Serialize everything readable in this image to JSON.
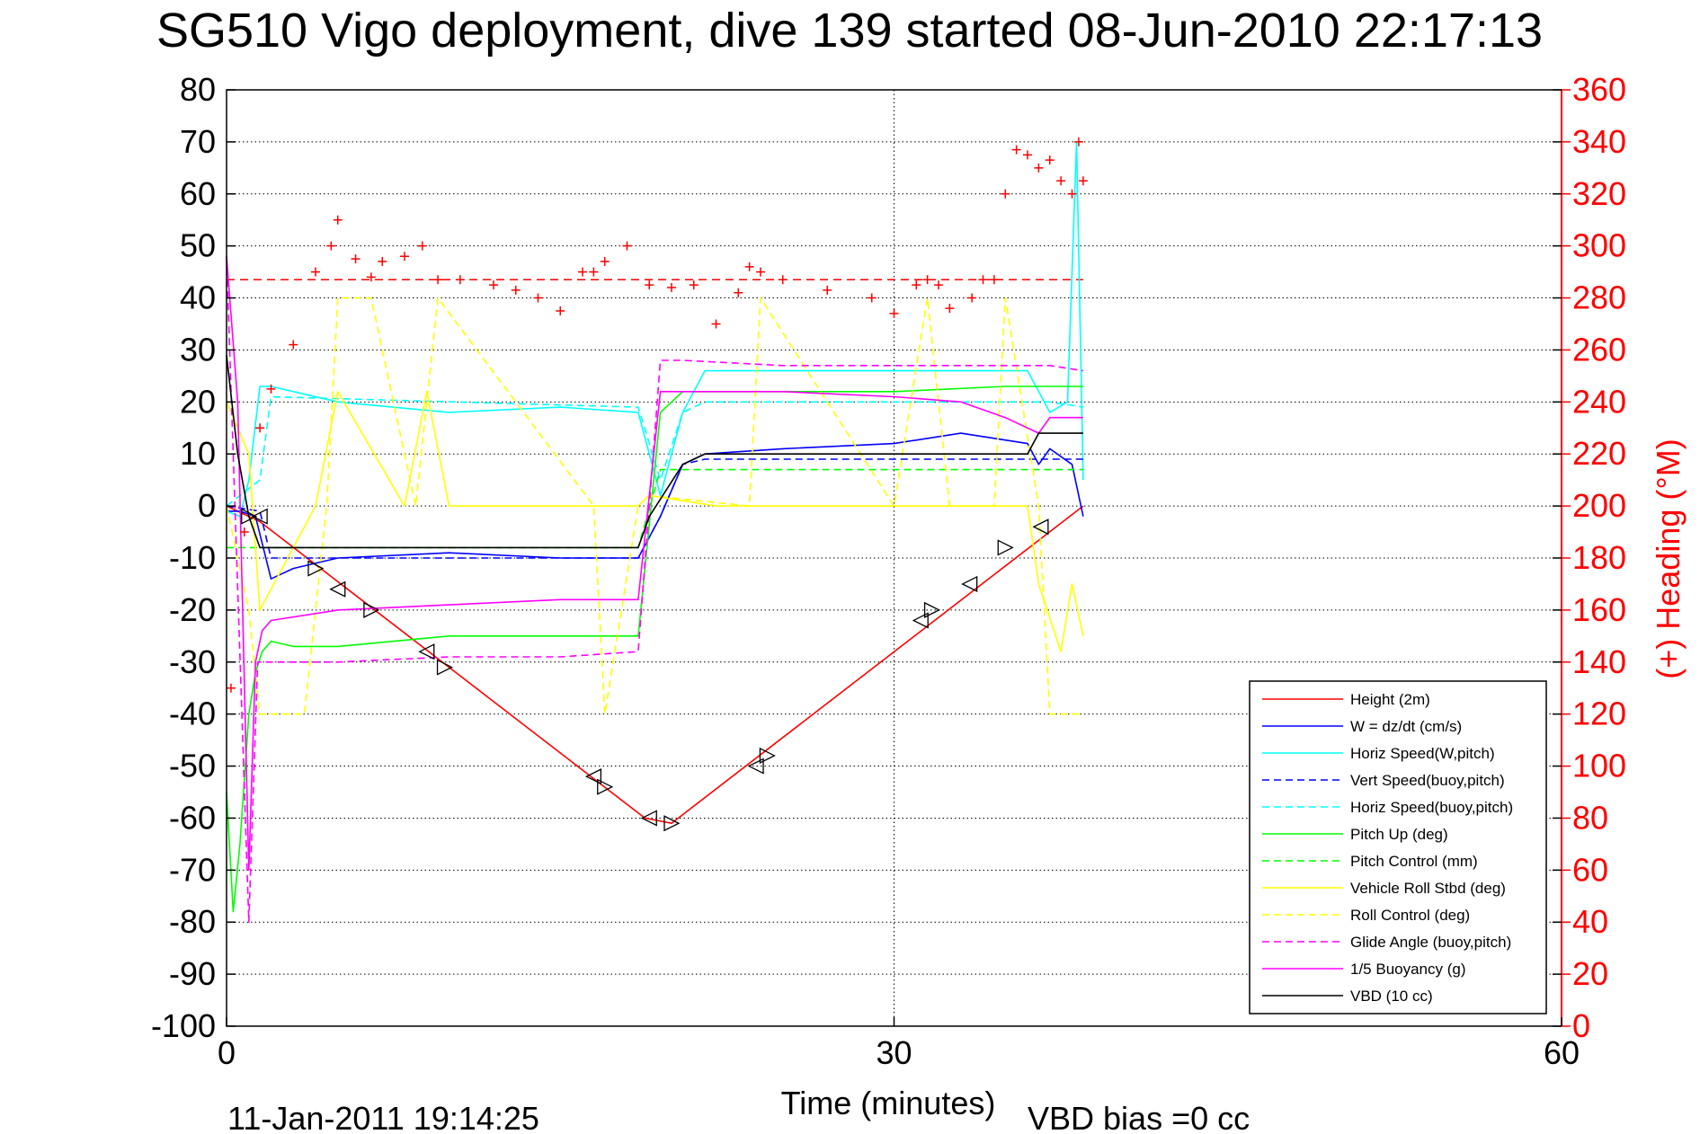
{
  "chart_data": {
    "type": "line",
    "title": "SG510 Vigo deployment, dive 139 started 08-Jun-2010 22:17:13",
    "xlabel": "Time (minutes)",
    "ylabel": "",
    "y2label": "(+) Heading (°M)",
    "xlim": [
      0,
      60
    ],
    "ylim": [
      -100,
      80
    ],
    "y2lim": [
      0,
      360
    ],
    "xticks": [
      0,
      30,
      60
    ],
    "yticks": [
      80,
      70,
      60,
      50,
      40,
      30,
      20,
      10,
      0,
      -10,
      -20,
      -30,
      -40,
      -50,
      -60,
      -70,
      -80,
      -90,
      -100
    ],
    "y2ticks": [
      360,
      340,
      320,
      300,
      280,
      260,
      240,
      220,
      200,
      180,
      160,
      140,
      120,
      100,
      80,
      60,
      40,
      20,
      0
    ],
    "grid": true,
    "legend_position": "bottom-right",
    "footer_left": "11-Jan-2011 19:14:25",
    "footer_right": "VBD bias =0 cc",
    "colors": {
      "red": "#ff0000",
      "blue": "#0000ff",
      "cyan": "#00ffff",
      "green": "#00ff00",
      "yellow": "#ffff00",
      "magenta": "#ff00ff",
      "black": "#000000"
    },
    "series": [
      {
        "name": "Height (2m)",
        "color": "#ff0000",
        "style": "solid",
        "x": [
          0,
          1.5,
          18.8,
          20.0,
          38.5
        ],
        "y": [
          0,
          -3,
          -60,
          -61,
          0
        ]
      },
      {
        "name": "W = dz/dt (cm/s)",
        "color": "#0000ff",
        "style": "solid",
        "x": [
          0,
          0.6,
          1.3,
          2.0,
          3.0,
          5.0,
          10.0,
          15.0,
          18.5,
          19.5,
          20.5,
          21.5,
          25.0,
          30.0,
          33.0,
          36.0,
          36.5,
          37.0,
          38.0,
          38.5
        ],
        "y": [
          -1,
          -1,
          -2,
          -14,
          -12,
          -10,
          -9,
          -10,
          -10,
          -2,
          8,
          10,
          11,
          12,
          14,
          12,
          8,
          11,
          8,
          -2
        ]
      },
      {
        "name": "Horiz Speed(W,pitch)",
        "color": "#00ffff",
        "style": "solid",
        "x": [
          0,
          0.6,
          1.0,
          1.5,
          2.0,
          5.0,
          10.0,
          15.0,
          18.5,
          19.5,
          20.5,
          21.5,
          25.0,
          30.0,
          33.0,
          36.0,
          37.0,
          37.8,
          38.2,
          38.5
        ],
        "y": [
          -1,
          -2,
          5,
          23,
          23,
          20,
          18,
          19,
          18,
          2,
          18,
          26,
          26,
          26,
          26,
          26,
          18,
          20,
          70,
          5
        ]
      },
      {
        "name": "Vert Speed(buoy,pitch)",
        "color": "#0000ff",
        "style": "dashed",
        "x": [
          0,
          1.5,
          2.0,
          18.5,
          19.5,
          20.5,
          21.5,
          30.0,
          36.0,
          37.0,
          38.5
        ],
        "y": [
          0,
          -1,
          -10,
          -10,
          -2,
          8,
          9,
          9,
          9,
          9,
          9
        ]
      },
      {
        "name": "Horiz Speed(buoy,pitch)",
        "color": "#00ffff",
        "style": "dashed",
        "x": [
          0,
          1.5,
          2.0,
          18.5,
          19.5,
          20.5,
          21.5,
          30.0,
          36.0,
          37.0,
          38.5
        ],
        "y": [
          0,
          5,
          21,
          19,
          5,
          18,
          20,
          20,
          20,
          20,
          19
        ]
      },
      {
        "name": "Pitch Up (deg)",
        "color": "#00ff00",
        "style": "solid",
        "x": [
          0,
          0.3,
          0.6,
          1.0,
          1.3,
          1.6,
          2.0,
          3.0,
          5.0,
          10.0,
          15.0,
          18.5,
          19.5,
          20.5,
          21.5,
          25.0,
          30.0,
          35.0,
          37.0,
          38.5
        ],
        "y": [
          -55,
          -78,
          -65,
          -40,
          -32,
          -28,
          -26,
          -27,
          -27,
          -25,
          -25,
          -25,
          18,
          22,
          22,
          22,
          22,
          23,
          23,
          23
        ]
      },
      {
        "name": "Pitch Control (mm)",
        "color": "#00ff00",
        "style": "dashed",
        "x": [
          0,
          1.4,
          1.5,
          18.5,
          19.5,
          20.5,
          38.5
        ],
        "y": [
          -8,
          -8,
          -8,
          -8,
          7,
          7,
          7
        ]
      },
      {
        "name": "Vehicle Roll Stbd (deg)",
        "color": "#ffff00",
        "style": "solid",
        "x": [
          0,
          1.0,
          1.5,
          4.0,
          5.0,
          8.0,
          9.0,
          10.0,
          15.0,
          18.0,
          18.5,
          19.0,
          22.0,
          24.0,
          30.0,
          32.0,
          34.0,
          36.0,
          36.5,
          37.5,
          38.0,
          38.5
        ],
        "y": [
          20,
          10,
          -20,
          0,
          22,
          0,
          22,
          0,
          0,
          0,
          0,
          2,
          0,
          0,
          0,
          0,
          0,
          0,
          -15,
          -28,
          -15,
          -25
        ]
      },
      {
        "name": "Roll Control (deg)",
        "color": "#ffff00",
        "style": "dashed",
        "x": [
          0,
          1.0,
          1.5,
          3.5,
          4.5,
          5.0,
          6.5,
          8.5,
          9.5,
          16.5,
          17.0,
          18.5,
          19.0,
          23.5,
          24.0,
          30.0,
          31.5,
          32.5,
          34.5,
          35.0,
          36.5,
          37.0,
          38.5
        ],
        "y": [
          0,
          -20,
          -40,
          -40,
          0,
          40,
          40,
          0,
          40,
          0,
          -40,
          0,
          2,
          0,
          40,
          0,
          40,
          0,
          0,
          40,
          0,
          -40,
          -40
        ]
      },
      {
        "name": "Glide Angle (buoy,pitch)",
        "color": "#ff00ff",
        "style": "dashed",
        "x": [
          0,
          0.3,
          1.0,
          1.4,
          2.0,
          5.0,
          10.0,
          15.0,
          18.5,
          19.5,
          20.5,
          25.0,
          30.0,
          35.0,
          37.0,
          38.5
        ],
        "y": [
          48,
          10,
          -80,
          -30,
          -30,
          -30,
          -29,
          -29,
          -28,
          28,
          28,
          27,
          27,
          27,
          27,
          26
        ]
      },
      {
        "name": "1/5 Buoyancy (g)",
        "color": "#ff00ff",
        "style": "solid",
        "x": [
          0,
          0.5,
          1.0,
          1.3,
          1.6,
          2.0,
          5.0,
          10.0,
          15.0,
          18.5,
          19.5,
          20.5,
          25.0,
          30.0,
          33.0,
          35.0,
          36.5,
          37.0,
          38.5
        ],
        "y": [
          48,
          20,
          -70,
          -30,
          -24,
          -22,
          -20,
          -19,
          -18,
          -18,
          22,
          22,
          22,
          21,
          20,
          17,
          14,
          17,
          17
        ]
      },
      {
        "name": "VBD (10 cc)",
        "color": "#000000",
        "style": "solid",
        "x": [
          0,
          0.5,
          1.0,
          1.5,
          2.0,
          18.5,
          19.0,
          20.5,
          21.5,
          30.0,
          36.0,
          36.5,
          37.0,
          38.5
        ],
        "y": [
          29,
          10,
          -2,
          -8,
          -8,
          -8,
          -2,
          8,
          10,
          10,
          10,
          14,
          14,
          14
        ]
      }
    ],
    "heading": {
      "name": "(+) Heading (°M)",
      "color": "#ff0000",
      "marker": "+",
      "axis": "right",
      "x": [
        0.2,
        0.8,
        1.5,
        2.0,
        3.0,
        4.0,
        4.7,
        5.0,
        5.8,
        6.5,
        7.0,
        8.0,
        8.8,
        9.5,
        10.5,
        12.0,
        13.0,
        14.0,
        15.0,
        16.0,
        16.5,
        17.0,
        18.0,
        19.0,
        20.0,
        21.0,
        22.0,
        23.0,
        23.5,
        24.0,
        25.0,
        27.0,
        29.0,
        30.0,
        31.0,
        31.5,
        32.0,
        32.5,
        33.5,
        34.0,
        34.5,
        35.0,
        35.5,
        36.0,
        36.5,
        37.0,
        37.5,
        38.0,
        38.3,
        38.5
      ],
      "y": [
        130,
        190,
        230,
        245,
        262,
        290,
        300,
        310,
        295,
        288,
        294,
        296,
        300,
        287,
        287,
        285,
        283,
        280,
        275,
        290,
        290,
        294,
        300,
        285,
        284,
        285,
        270,
        282,
        292,
        290,
        287,
        283,
        280,
        274,
        285,
        287,
        285,
        276,
        280,
        287,
        287,
        320,
        337,
        335,
        330,
        333,
        325,
        320,
        340,
        325
      ]
    },
    "heading_reference": 287,
    "markers": {
      "shape": "triangle",
      "color": "#000000",
      "x": [
        1.0,
        1.5,
        4.0,
        5.0,
        6.5,
        9.0,
        9.8,
        16.5,
        17.0,
        19.0,
        20.0,
        23.8,
        24.3,
        31.2,
        31.7,
        33.4,
        35.0,
        36.6
      ],
      "y": [
        -2,
        -2,
        -12,
        -16,
        -20,
        -28,
        -31,
        -52,
        -54,
        -60,
        -61,
        -50,
        -48,
        -22,
        -20,
        -15,
        -8,
        -4
      ]
    }
  }
}
